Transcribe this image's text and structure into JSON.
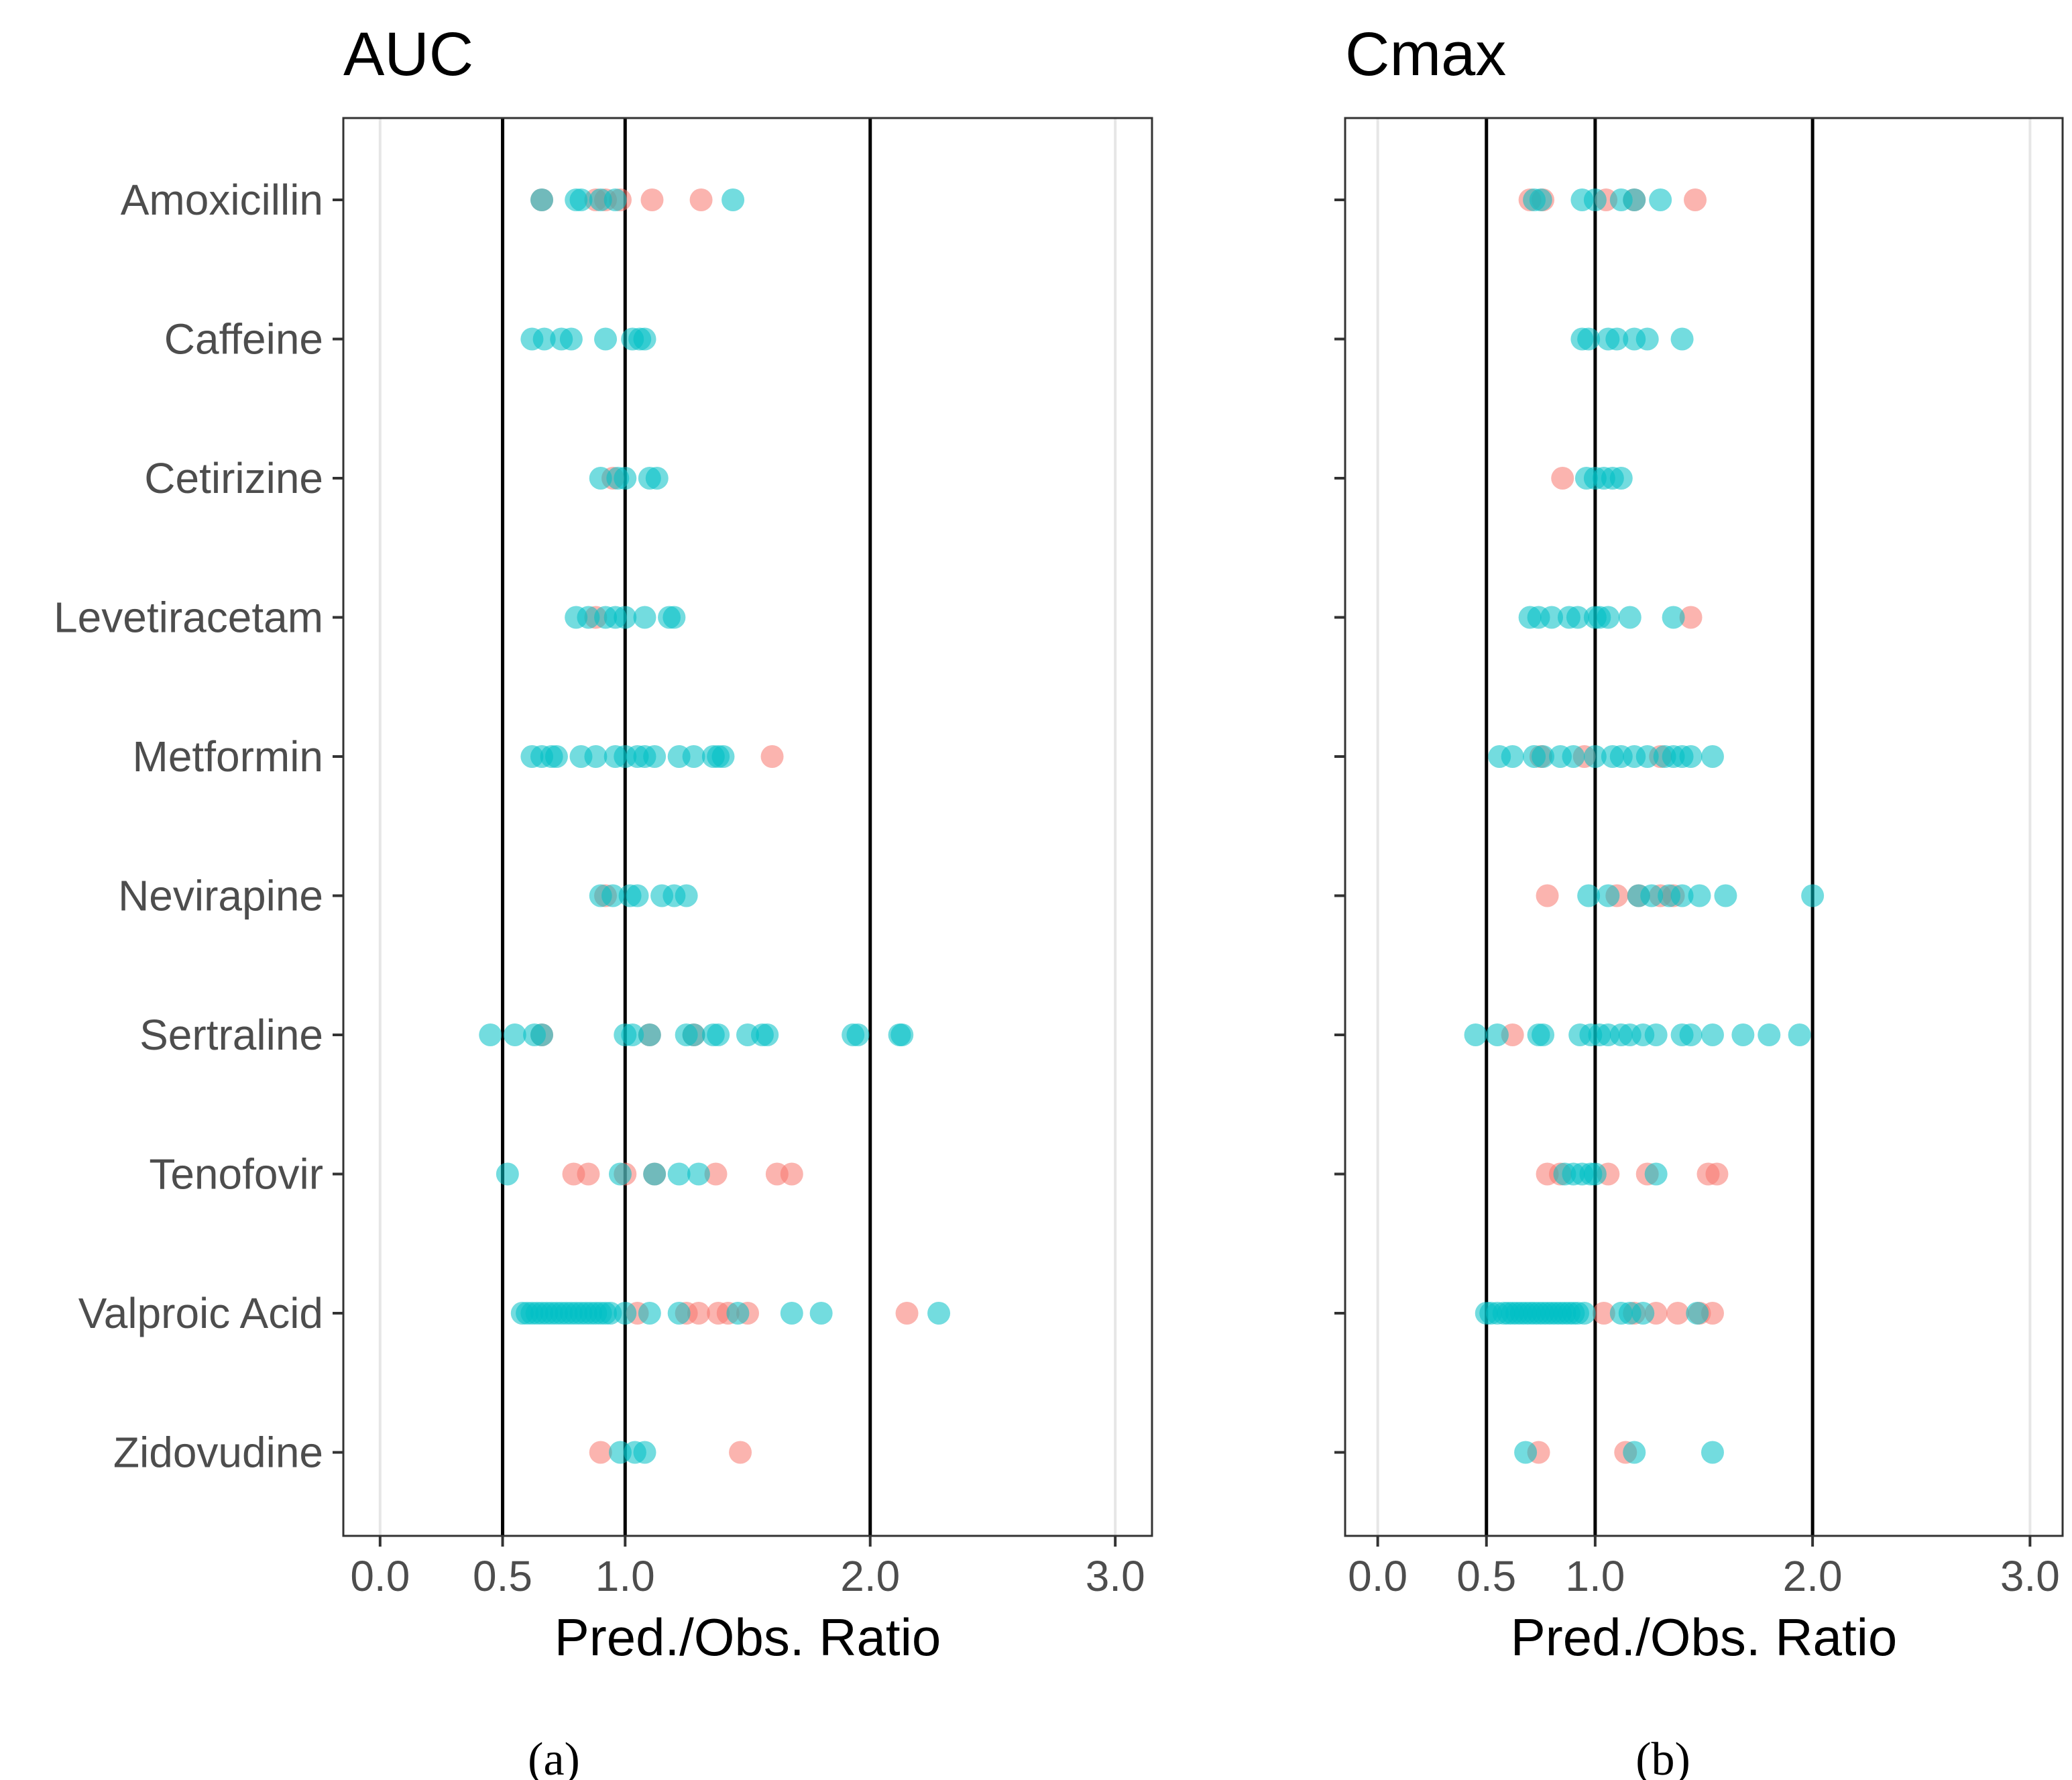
{
  "figure": {
    "captions": [
      "(a)",
      "(b)"
    ]
  },
  "colors": {
    "teal": "#00BFC4",
    "salmon": "#F8766D",
    "refline": "#000000",
    "grid": "#e6e6e6",
    "frame": "#333333"
  },
  "chart_data": [
    {
      "type": "scatter",
      "title": "AUC",
      "caption_letter": "a",
      "xlabel": "Pred./Obs. Ratio",
      "xlim": [
        -0.15,
        3.15
      ],
      "xticks": [
        0.0,
        0.5,
        1.0,
        2.0,
        3.0
      ],
      "xtick_labels": [
        "0.0",
        "0.5",
        "1.0",
        "2.0",
        "3.0"
      ],
      "reference_lines": [
        0.5,
        1.0,
        2.0
      ],
      "categories": [
        "Amoxicillin",
        "Caffeine",
        "Cetirizine",
        "Levetiracetam",
        "Metformin",
        "Nevirapine",
        "Sertraline",
        "Tenofovir",
        "Valproic Acid",
        "Zidovudine"
      ],
      "series": [
        {
          "name": "salmon",
          "points": {
            "Amoxicillin": [
              0.66,
              0.88,
              0.92,
              0.98,
              1.11,
              1.31
            ],
            "Caffeine": [],
            "Cetirizine": [
              0.95
            ],
            "Levetiracetam": [
              0.88
            ],
            "Metformin": [
              1.6
            ],
            "Nevirapine": [
              0.92
            ],
            "Sertraline": [
              0.66,
              1.1,
              1.28
            ],
            "Tenofovir": [
              0.79,
              0.85,
              1.0,
              1.12,
              1.37,
              1.62,
              1.68
            ],
            "Valproic Acid": [
              1.05,
              1.25,
              1.3,
              1.38,
              1.42,
              1.5,
              2.15
            ],
            "Zidovudine": [
              0.9,
              1.47
            ]
          }
        },
        {
          "name": "teal",
          "points": {
            "Amoxicillin": [
              0.66,
              0.8,
              0.82,
              0.9,
              0.96,
              1.44
            ],
            "Caffeine": [
              0.62,
              0.67,
              0.74,
              0.78,
              0.92,
              1.03,
              1.06,
              1.08
            ],
            "Cetirizine": [
              0.9,
              0.97,
              1.0,
              1.1,
              1.13
            ],
            "Levetiracetam": [
              0.8,
              0.85,
              0.92,
              0.96,
              1.0,
              1.08,
              1.18,
              1.2
            ],
            "Metformin": [
              0.62,
              0.66,
              0.7,
              0.72,
              0.82,
              0.88,
              0.96,
              1.0,
              1.05,
              1.08,
              1.12,
              1.22,
              1.28,
              1.36,
              1.38,
              1.4
            ],
            "Nevirapine": [
              0.9,
              0.95,
              1.02,
              1.05,
              1.15,
              1.2,
              1.25
            ],
            "Sertraline": [
              0.45,
              0.55,
              0.63,
              0.66,
              1.0,
              1.03,
              1.1,
              1.25,
              1.28,
              1.36,
              1.38,
              1.5,
              1.56,
              1.58,
              1.93,
              1.95,
              2.12,
              2.13
            ],
            "Tenofovir": [
              0.52,
              0.98,
              1.12,
              1.22,
              1.3
            ],
            "Valproic Acid": [
              0.58,
              0.6,
              0.62,
              0.64,
              0.66,
              0.68,
              0.7,
              0.72,
              0.74,
              0.76,
              0.78,
              0.8,
              0.82,
              0.84,
              0.86,
              0.88,
              0.9,
              0.92,
              0.94,
              1.0,
              1.1,
              1.22,
              1.46,
              1.68,
              1.8,
              2.28
            ],
            "Zidovudine": [
              0.98,
              1.04,
              1.08
            ]
          }
        }
      ]
    },
    {
      "type": "scatter",
      "title": "Cmax",
      "caption_letter": "b",
      "xlabel": "Pred./Obs. Ratio",
      "xlim": [
        -0.15,
        3.15
      ],
      "xticks": [
        0.0,
        0.5,
        1.0,
        2.0,
        3.0
      ],
      "xtick_labels": [
        "0.0",
        "0.5",
        "1.0",
        "2.0",
        "3.0"
      ],
      "reference_lines": [
        0.5,
        1.0,
        2.0
      ],
      "categories": [
        "Amoxicillin",
        "Caffeine",
        "Cetirizine",
        "Levetiracetam",
        "Metformin",
        "Nevirapine",
        "Sertraline",
        "Tenofovir",
        "Valproic Acid",
        "Zidovudine"
      ],
      "series": [
        {
          "name": "salmon",
          "points": {
            "Amoxicillin": [
              0.7,
              0.76,
              1.05,
              1.18,
              1.46
            ],
            "Caffeine": [],
            "Cetirizine": [
              0.85
            ],
            "Levetiracetam": [
              1.44
            ],
            "Metformin": [
              0.75,
              0.95,
              1.3
            ],
            "Nevirapine": [
              0.78,
              1.1,
              1.2,
              1.3,
              1.36
            ],
            "Sertraline": [
              0.62
            ],
            "Tenofovir": [
              0.78,
              0.84,
              1.06,
              1.24,
              1.52,
              1.56
            ],
            "Valproic Acid": [
              1.04,
              1.18,
              1.28,
              1.38,
              1.48,
              1.54
            ],
            "Zidovudine": [
              0.74,
              1.14
            ]
          }
        },
        {
          "name": "teal",
          "points": {
            "Amoxicillin": [
              0.72,
              0.75,
              0.94,
              1.0,
              1.12,
              1.18,
              1.3
            ],
            "Caffeine": [
              0.94,
              0.97,
              1.06,
              1.1,
              1.18,
              1.24,
              1.4
            ],
            "Cetirizine": [
              0.96,
              1.0,
              1.04,
              1.08,
              1.12
            ],
            "Levetiracetam": [
              0.7,
              0.74,
              0.8,
              0.88,
              0.92,
              1.0,
              1.02,
              1.06,
              1.16,
              1.36
            ],
            "Metformin": [
              0.56,
              0.62,
              0.72,
              0.76,
              0.84,
              0.9,
              1.0,
              1.08,
              1.12,
              1.18,
              1.24,
              1.32,
              1.36,
              1.4,
              1.44,
              1.54
            ],
            "Nevirapine": [
              0.97,
              1.06,
              1.2,
              1.26,
              1.34,
              1.4,
              1.48,
              1.6,
              2.0
            ],
            "Sertraline": [
              0.45,
              0.55,
              0.74,
              0.76,
              0.93,
              0.98,
              1.02,
              1.06,
              1.12,
              1.16,
              1.22,
              1.28,
              1.4,
              1.44,
              1.54,
              1.68,
              1.8,
              1.94
            ],
            "Tenofovir": [
              0.86,
              0.9,
              0.94,
              0.98,
              1.0,
              1.28
            ],
            "Valproic Acid": [
              0.5,
              0.52,
              0.55,
              0.58,
              0.6,
              0.62,
              0.64,
              0.66,
              0.68,
              0.7,
              0.72,
              0.74,
              0.76,
              0.78,
              0.8,
              0.82,
              0.84,
              0.86,
              0.88,
              0.9,
              0.92,
              0.95,
              1.12,
              1.16,
              1.22,
              1.47
            ],
            "Zidovudine": [
              0.68,
              1.18,
              1.54
            ]
          }
        }
      ]
    }
  ]
}
